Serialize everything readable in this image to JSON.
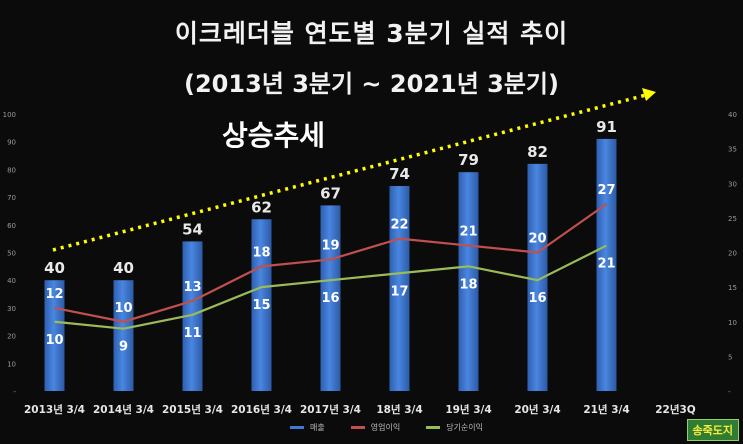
{
  "title": "이크레더블 연도별 3분기 실적 추이",
  "subtitle": "(2013년 3분기 ~ 2021년 3분기)",
  "trend_label": "상승추세",
  "watermark": "송죽도지",
  "colors": {
    "background": "#0b0b0b",
    "revenue": "#3f78d6",
    "operating_profit": "#c0504d",
    "net_profit": "#9bbb59",
    "trend_arrow": "#ffff00",
    "text": "#f2f2f2",
    "axis_text": "#9a9a9a"
  },
  "chart_data": {
    "type": "bar",
    "categories": [
      "2013년 3/4",
      "2014년 3/4",
      "2015년 3/4",
      "2016년 3/4",
      "2017년 3/4",
      "18년 3/4",
      "19년 3/4",
      "20년 3/4",
      "21년 3/4",
      "22년3Q"
    ],
    "ylim_left": [
      0,
      100
    ],
    "yticks_left": [
      0,
      10,
      20,
      30,
      40,
      50,
      60,
      70,
      80,
      90,
      100
    ],
    "ylim_right": [
      0,
      40
    ],
    "yticks_right": [
      0,
      5,
      10,
      15,
      20,
      25,
      30,
      35,
      40
    ],
    "grid": false,
    "legend_position": "bottom",
    "series": [
      {
        "name": "매출",
        "type": "bar",
        "axis": "left",
        "values": [
          40,
          40,
          54,
          62,
          67,
          74,
          79,
          82,
          91,
          null
        ]
      },
      {
        "name": "영업이익",
        "type": "line",
        "axis": "right",
        "values": [
          12,
          10,
          13,
          18,
          19,
          22,
          21,
          20,
          27,
          null
        ]
      },
      {
        "name": "당기순이익",
        "type": "line",
        "axis": "right",
        "values": [
          10,
          9,
          11,
          15,
          16,
          17,
          18,
          16,
          21,
          null
        ]
      }
    ]
  }
}
